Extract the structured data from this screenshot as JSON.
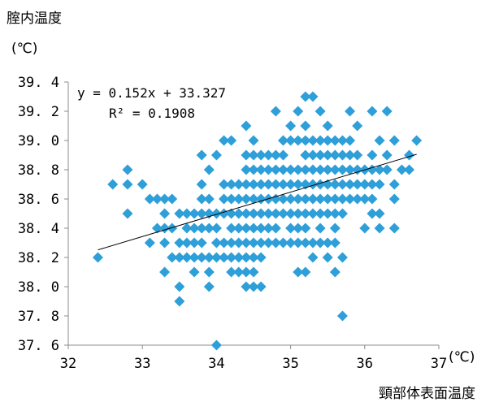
{
  "chart_data": {
    "type": "scatter",
    "title": "",
    "ylabel": "腟内温度",
    "y_unit": "(℃)",
    "xlabel": "頸部体表面温度",
    "x_unit": "(℃)",
    "xlim": [
      32,
      37
    ],
    "ylim": [
      37.6,
      39.4
    ],
    "x_ticks": [
      "32",
      "33",
      "34",
      "35",
      "36",
      "37"
    ],
    "y_ticks": [
      "37.6",
      "37.8",
      "38.0",
      "38.2",
      "38.4",
      "38.6",
      "38.8",
      "39.0",
      "39.2",
      "39.4"
    ],
    "grid": false,
    "legend": "none",
    "marker": "diamond",
    "marker_color": "#2e9fd8",
    "trendline": {
      "slope": 0.152,
      "intercept": 33.327,
      "x_range": [
        32.4,
        36.7
      ],
      "equation": "y = 0.152x + 33.327",
      "r2": "R² = 0.1908"
    },
    "points": [
      [
        32.4,
        38.2
      ],
      [
        32.6,
        38.7
      ],
      [
        32.8,
        38.7
      ],
      [
        32.8,
        38.8
      ],
      [
        32.8,
        38.5
      ],
      [
        33.0,
        38.7
      ],
      [
        33.1,
        38.3
      ],
      [
        33.1,
        38.6
      ],
      [
        33.2,
        38.6
      ],
      [
        33.2,
        38.4
      ],
      [
        33.3,
        38.6
      ],
      [
        33.3,
        38.4
      ],
      [
        33.3,
        38.3
      ],
      [
        33.3,
        38.1
      ],
      [
        33.3,
        38.5
      ],
      [
        33.4,
        38.6
      ],
      [
        33.4,
        38.4
      ],
      [
        33.4,
        38.2
      ],
      [
        33.5,
        38.5
      ],
      [
        33.5,
        38.3
      ],
      [
        33.5,
        38.2
      ],
      [
        33.5,
        38.0
      ],
      [
        33.5,
        37.9
      ],
      [
        33.6,
        38.5
      ],
      [
        33.6,
        38.3
      ],
      [
        33.6,
        38.2
      ],
      [
        33.6,
        38.4
      ],
      [
        33.7,
        38.5
      ],
      [
        33.7,
        38.4
      ],
      [
        33.7,
        38.3
      ],
      [
        33.7,
        38.2
      ],
      [
        33.7,
        38.1
      ],
      [
        33.8,
        38.5
      ],
      [
        33.8,
        38.4
      ],
      [
        33.8,
        38.2
      ],
      [
        33.8,
        38.9
      ],
      [
        33.8,
        38.7
      ],
      [
        33.8,
        38.6
      ],
      [
        33.8,
        38.3
      ],
      [
        33.9,
        38.5
      ],
      [
        33.9,
        38.8
      ],
      [
        33.9,
        38.6
      ],
      [
        33.9,
        38.4
      ],
      [
        33.9,
        38.2
      ],
      [
        33.9,
        38.1
      ],
      [
        33.9,
        38.0
      ],
      [
        34.0,
        38.9
      ],
      [
        34.0,
        38.5
      ],
      [
        34.0,
        38.4
      ],
      [
        34.0,
        38.3
      ],
      [
        34.0,
        38.2
      ],
      [
        34.0,
        37.6
      ],
      [
        34.1,
        38.7
      ],
      [
        34.1,
        38.6
      ],
      [
        34.1,
        38.5
      ],
      [
        34.1,
        38.3
      ],
      [
        34.1,
        38.2
      ],
      [
        34.1,
        39.0
      ],
      [
        34.2,
        38.7
      ],
      [
        34.2,
        38.6
      ],
      [
        34.2,
        38.5
      ],
      [
        34.2,
        38.4
      ],
      [
        34.2,
        38.3
      ],
      [
        34.2,
        38.2
      ],
      [
        34.2,
        38.1
      ],
      [
        34.2,
        39.0
      ],
      [
        34.3,
        38.7
      ],
      [
        34.3,
        38.6
      ],
      [
        34.3,
        38.5
      ],
      [
        34.3,
        38.4
      ],
      [
        34.3,
        38.3
      ],
      [
        34.3,
        38.2
      ],
      [
        34.3,
        38.1
      ],
      [
        34.4,
        38.7
      ],
      [
        34.4,
        38.6
      ],
      [
        34.4,
        38.5
      ],
      [
        34.4,
        38.4
      ],
      [
        34.4,
        38.3
      ],
      [
        34.4,
        38.2
      ],
      [
        34.4,
        38.1
      ],
      [
        34.4,
        38.0
      ],
      [
        34.4,
        39.1
      ],
      [
        34.4,
        38.9
      ],
      [
        34.4,
        38.8
      ],
      [
        34.5,
        38.7
      ],
      [
        34.5,
        38.6
      ],
      [
        34.5,
        38.5
      ],
      [
        34.5,
        38.4
      ],
      [
        34.5,
        38.3
      ],
      [
        34.5,
        38.2
      ],
      [
        34.5,
        38.1
      ],
      [
        34.5,
        38.0
      ],
      [
        34.5,
        38.9
      ],
      [
        34.5,
        38.8
      ],
      [
        34.5,
        39.0
      ],
      [
        34.6,
        38.9
      ],
      [
        34.6,
        38.8
      ],
      [
        34.6,
        38.7
      ],
      [
        34.6,
        38.6
      ],
      [
        34.6,
        38.5
      ],
      [
        34.6,
        38.4
      ],
      [
        34.6,
        38.3
      ],
      [
        34.6,
        38.2
      ],
      [
        34.6,
        38.0
      ],
      [
        34.7,
        38.9
      ],
      [
        34.7,
        38.8
      ],
      [
        34.7,
        38.7
      ],
      [
        34.7,
        38.6
      ],
      [
        34.7,
        38.5
      ],
      [
        34.7,
        38.4
      ],
      [
        34.7,
        38.3
      ],
      [
        34.8,
        38.9
      ],
      [
        34.8,
        38.8
      ],
      [
        34.8,
        38.7
      ],
      [
        34.8,
        38.6
      ],
      [
        34.8,
        38.5
      ],
      [
        34.8,
        38.4
      ],
      [
        34.8,
        38.3
      ],
      [
        34.8,
        39.2
      ],
      [
        34.9,
        39.0
      ],
      [
        34.9,
        38.9
      ],
      [
        34.9,
        38.8
      ],
      [
        34.9,
        38.7
      ],
      [
        34.9,
        38.6
      ],
      [
        34.9,
        38.5
      ],
      [
        34.9,
        38.3
      ],
      [
        35.0,
        39.0
      ],
      [
        35.0,
        38.8
      ],
      [
        35.0,
        38.7
      ],
      [
        35.0,
        38.6
      ],
      [
        35.0,
        38.5
      ],
      [
        35.0,
        38.4
      ],
      [
        35.0,
        38.3
      ],
      [
        35.0,
        39.1
      ],
      [
        35.1,
        39.2
      ],
      [
        35.1,
        39.0
      ],
      [
        35.1,
        38.8
      ],
      [
        35.1,
        38.7
      ],
      [
        35.1,
        38.6
      ],
      [
        35.1,
        38.5
      ],
      [
        35.1,
        38.4
      ],
      [
        35.1,
        38.3
      ],
      [
        35.1,
        38.1
      ],
      [
        35.2,
        39.3
      ],
      [
        35.2,
        39.1
      ],
      [
        35.2,
        38.9
      ],
      [
        35.2,
        38.8
      ],
      [
        35.2,
        38.7
      ],
      [
        35.2,
        38.6
      ],
      [
        35.2,
        38.5
      ],
      [
        35.2,
        38.4
      ],
      [
        35.2,
        38.3
      ],
      [
        35.2,
        38.1
      ],
      [
        35.2,
        39.0
      ],
      [
        35.3,
        39.3
      ],
      [
        35.3,
        38.9
      ],
      [
        35.3,
        38.8
      ],
      [
        35.3,
        38.7
      ],
      [
        35.3,
        38.6
      ],
      [
        35.3,
        38.5
      ],
      [
        35.3,
        38.3
      ],
      [
        35.3,
        38.2
      ],
      [
        35.3,
        39.0
      ],
      [
        35.4,
        39.2
      ],
      [
        35.4,
        39.0
      ],
      [
        35.4,
        38.9
      ],
      [
        35.4,
        38.8
      ],
      [
        35.4,
        38.7
      ],
      [
        35.4,
        38.6
      ],
      [
        35.4,
        38.5
      ],
      [
        35.4,
        38.4
      ],
      [
        35.4,
        38.3
      ],
      [
        35.5,
        39.1
      ],
      [
        35.5,
        39.0
      ],
      [
        35.5,
        38.9
      ],
      [
        35.5,
        38.8
      ],
      [
        35.5,
        38.7
      ],
      [
        35.5,
        38.6
      ],
      [
        35.5,
        38.5
      ],
      [
        35.5,
        38.3
      ],
      [
        35.5,
        38.2
      ],
      [
        35.6,
        39.0
      ],
      [
        35.6,
        38.9
      ],
      [
        35.6,
        38.8
      ],
      [
        35.6,
        38.7
      ],
      [
        35.6,
        38.6
      ],
      [
        35.6,
        38.5
      ],
      [
        35.6,
        38.4
      ],
      [
        35.6,
        38.3
      ],
      [
        35.6,
        38.1
      ],
      [
        35.7,
        39.0
      ],
      [
        35.7,
        38.9
      ],
      [
        35.7,
        38.8
      ],
      [
        35.7,
        38.7
      ],
      [
        35.7,
        38.6
      ],
      [
        35.7,
        38.5
      ],
      [
        35.7,
        38.2
      ],
      [
        35.7,
        37.8
      ],
      [
        35.8,
        39.2
      ],
      [
        35.8,
        38.9
      ],
      [
        35.8,
        38.8
      ],
      [
        35.8,
        38.7
      ],
      [
        35.8,
        38.6
      ],
      [
        35.8,
        39.0
      ],
      [
        35.9,
        39.1
      ],
      [
        35.9,
        38.9
      ],
      [
        35.9,
        38.8
      ],
      [
        35.9,
        38.7
      ],
      [
        35.9,
        38.6
      ],
      [
        36.0,
        38.8
      ],
      [
        36.0,
        38.7
      ],
      [
        36.0,
        38.6
      ],
      [
        36.0,
        38.4
      ],
      [
        36.1,
        39.2
      ],
      [
        36.1,
        38.9
      ],
      [
        36.1,
        38.8
      ],
      [
        36.1,
        38.7
      ],
      [
        36.1,
        38.5
      ],
      [
        36.1,
        38.6
      ],
      [
        36.2,
        39.0
      ],
      [
        36.2,
        38.8
      ],
      [
        36.2,
        38.7
      ],
      [
        36.2,
        38.5
      ],
      [
        36.2,
        38.4
      ],
      [
        36.3,
        39.2
      ],
      [
        36.3,
        38.8
      ],
      [
        36.3,
        38.9
      ],
      [
        36.4,
        39.0
      ],
      [
        36.4,
        38.7
      ],
      [
        36.4,
        38.6
      ],
      [
        36.4,
        38.4
      ],
      [
        36.5,
        38.8
      ],
      [
        36.6,
        38.9
      ],
      [
        36.6,
        38.8
      ],
      [
        36.7,
        39.0
      ]
    ]
  }
}
